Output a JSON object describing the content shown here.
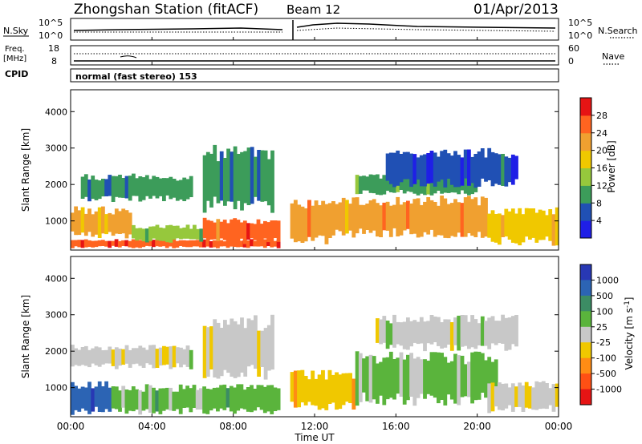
{
  "header": {
    "station": "Zhongshan Station (fitACF)",
    "beam": "Beam 12",
    "date": "01/Apr/2013"
  },
  "panels": {
    "nsky": {
      "label": "N.Sky",
      "tick_top": "10^5",
      "tick_bottom": "10^0"
    },
    "nsearch": {
      "label": "N.Search",
      "tick_top": "10^5",
      "tick_bottom": "10^0"
    },
    "freq": {
      "label_line1": "Freq.",
      "label_line2": "[MHz]",
      "tick_top": "18",
      "tick_bottom": "8"
    },
    "nave": {
      "label": "Nave",
      "tick_top": "60",
      "tick_bottom": "0"
    },
    "cpid": {
      "label": "CPID",
      "text": "normal (fast stereo) 153"
    }
  },
  "axes": {
    "ylabel": "Slant Range [km]",
    "yticks": [
      "1000",
      "2000",
      "3000",
      "4000"
    ],
    "xlabel": "Time UT",
    "xticks": [
      "00:00",
      "04:00",
      "08:00",
      "12:00",
      "16:00",
      "20:00",
      "00:00"
    ]
  },
  "colorbars": {
    "power": {
      "label": "Power [dB]",
      "ticks": [
        "4",
        "8",
        "12",
        "16",
        "20",
        "24",
        "28"
      ],
      "colors": [
        "#1f1fe6",
        "#2050b4",
        "#3c9c5a",
        "#96c83c",
        "#f0c800",
        "#f0a030",
        "#ff6420",
        "#e61414"
      ]
    },
    "velocity": {
      "label": "Velocity [m s",
      "label_sup": "-1",
      "label_end": "]",
      "ticks": [
        "1000",
        "500",
        "100",
        "25",
        "-25",
        "-100",
        "-500",
        "-1000"
      ],
      "colors": [
        "#2838b4",
        "#2c64b4",
        "#3c8c64",
        "#5ab43c",
        "#c8c8c8",
        "#f0c800",
        "#ff8c14",
        "#ff5014",
        "#e61414"
      ]
    }
  },
  "chart_data": [
    {
      "type": "heatmap",
      "name": "Power",
      "xlabel": "Time UT",
      "ylabel": "Slant Range [km]",
      "x_range_hours": [
        0,
        24
      ],
      "ylim_km": [
        200,
        4600
      ],
      "zlim": [
        0,
        30
      ],
      "data_gap_hours": [
        10.3,
        10.8
      ],
      "regions": [
        {
          "t": [
            0,
            10.3
          ],
          "r": [
            250,
            500
          ],
          "z": 26
        },
        {
          "t": [
            0,
            3
          ],
          "r": [
            500,
            1400
          ],
          "z": 20
        },
        {
          "t": [
            3,
            6.5
          ],
          "r": [
            400,
            900
          ],
          "z": 12
        },
        {
          "t": [
            6.5,
            10.3
          ],
          "r": [
            350,
            1100
          ],
          "z": 25
        },
        {
          "t": [
            0.5,
            6
          ],
          "r": [
            1500,
            2300
          ],
          "z": 8
        },
        {
          "t": [
            6.5,
            10
          ],
          "r": [
            1200,
            3100
          ],
          "z": 9
        },
        {
          "t": [
            10.8,
            13
          ],
          "r": [
            350,
            1600
          ],
          "z": 22
        },
        {
          "t": [
            13,
            20.5
          ],
          "r": [
            500,
            1700
          ],
          "z": 21
        },
        {
          "t": [
            14,
            20
          ],
          "r": [
            1700,
            2300
          ],
          "z": 10
        },
        {
          "t": [
            20.5,
            24
          ],
          "r": [
            300,
            1400
          ],
          "z": 17
        },
        {
          "t": [
            15.5,
            22
          ],
          "r": [
            1900,
            3000
          ],
          "z": 5
        }
      ]
    },
    {
      "type": "heatmap",
      "name": "Velocity",
      "xlabel": "Time UT",
      "ylabel": "Slant Range [km]",
      "x_range_hours": [
        0,
        24
      ],
      "ylim_km": [
        200,
        4600
      ],
      "zlim": [
        -1000,
        1000
      ],
      "data_gap_hours": [
        10.3,
        10.8
      ],
      "regions": [
        {
          "t": [
            0,
            2
          ],
          "r": [
            250,
            1200
          ],
          "z": 700
        },
        {
          "t": [
            0,
            6
          ],
          "r": [
            1500,
            2200
          ],
          "z": 0
        },
        {
          "t": [
            2,
            10.3
          ],
          "r": [
            250,
            1100
          ],
          "z": 200
        },
        {
          "t": [
            6.5,
            10
          ],
          "r": [
            1200,
            3000
          ],
          "z": -50
        },
        {
          "t": [
            10.8,
            14
          ],
          "r": [
            350,
            1500
          ],
          "z": -300
        },
        {
          "t": [
            14,
            21
          ],
          "r": [
            500,
            2000
          ],
          "z": 150
        },
        {
          "t": [
            20.5,
            24
          ],
          "r": [
            300,
            1200
          ],
          "z": -80
        },
        {
          "t": [
            15,
            22
          ],
          "r": [
            2000,
            3000
          ],
          "z": 0
        }
      ]
    }
  ]
}
